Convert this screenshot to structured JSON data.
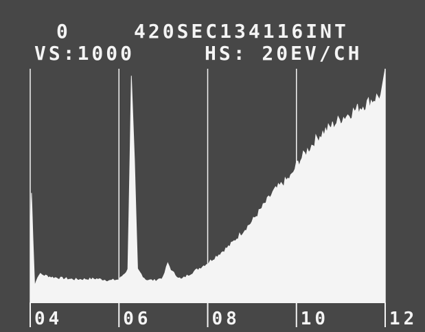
{
  "header": {
    "counts_readout": "0",
    "livetime_readout": "420SEC134116INT",
    "vertical_scale": "VS:1000",
    "horizontal_scale": "HS: 20EV/CH"
  },
  "colors": {
    "screen_background": "#474747",
    "trace": "#f4f4f4"
  },
  "chart_data": {
    "type": "area",
    "title": "",
    "xlabel": "",
    "ylabel": "",
    "x_tick_labels": [
      "04",
      "06",
      "08",
      "10",
      "12"
    ],
    "x_ticks": [
      4,
      6,
      8,
      10,
      12
    ],
    "xlim": [
      4,
      12
    ],
    "ylim": [
      0,
      1000
    ],
    "grid": "vertical lines at 6, 8, 10",
    "x": [
      4.0,
      4.03,
      4.06,
      4.1,
      4.2,
      4.5,
      5.0,
      5.5,
      5.8,
      6.0,
      6.2,
      6.28,
      6.35,
      6.42,
      6.5,
      6.6,
      6.8,
      7.0,
      7.1,
      7.2,
      7.4,
      7.6,
      8.0,
      8.5,
      9.0,
      9.5,
      9.9,
      10.0,
      10.5,
      11.0,
      11.5,
      11.9
    ],
    "values": [
      200,
      430,
      240,
      10,
      60,
      45,
      35,
      38,
      30,
      35,
      80,
      950,
      560,
      80,
      60,
      35,
      30,
      45,
      110,
      70,
      35,
      60,
      110,
      190,
      300,
      440,
      510,
      560,
      690,
      770,
      830,
      880
    ]
  }
}
